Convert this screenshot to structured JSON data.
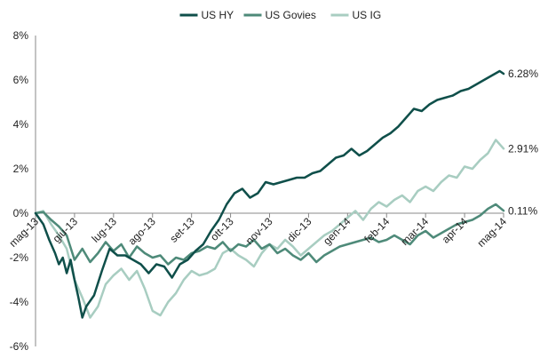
{
  "chart_data": {
    "type": "line",
    "x_ticks": [
      "mag-13",
      "giu-13",
      "lug-13",
      "ago-13",
      "set-13",
      "ott-13",
      "nov-13",
      "dic-13",
      "gen-14",
      "feb-14",
      "mar-14",
      "apr-14",
      "mag-14"
    ],
    "y_ticks": [
      "8%",
      "6%",
      "4%",
      "2%",
      "0%",
      "-2%",
      "-4%",
      "-6%"
    ],
    "ylim": [
      -6,
      8
    ],
    "y_unit": "%",
    "grid": "horizontal",
    "legend_position": "top",
    "series": [
      {
        "name": "US HY",
        "color": "#0f4f4a",
        "end_label": "6.28%",
        "x": [
          0,
          0.2,
          0.35,
          0.5,
          0.6,
          0.7,
          0.8,
          0.9,
          1.0,
          1.1,
          1.2,
          1.3,
          1.5,
          1.7,
          1.9,
          2.1,
          2.3,
          2.5,
          2.7,
          2.9,
          3.1,
          3.3,
          3.5,
          3.7,
          3.9,
          4.1,
          4.3,
          4.5,
          4.7,
          4.9,
          5.1,
          5.3,
          5.5,
          5.7,
          5.9,
          6.1,
          6.3,
          6.5,
          6.7,
          6.9,
          7.1,
          7.3,
          7.5,
          7.7,
          7.9,
          8.1,
          8.3,
          8.5,
          8.7,
          8.9,
          9.1,
          9.3,
          9.5,
          9.7,
          9.9,
          10.1,
          10.3,
          10.5,
          10.7,
          10.9,
          11.1,
          11.3,
          11.5,
          11.7,
          11.9,
          12.0
        ],
        "values": [
          0,
          -0.5,
          -1.2,
          -1.8,
          -2.3,
          -2.0,
          -2.7,
          -2.1,
          -3.0,
          -3.8,
          -4.7,
          -4.2,
          -3.7,
          -2.6,
          -1.6,
          -1.9,
          -1.9,
          -2.1,
          -2.3,
          -2.7,
          -2.3,
          -2.4,
          -2.9,
          -2.3,
          -2.1,
          -1.7,
          -1.4,
          -0.8,
          -0.3,
          0.4,
          0.9,
          1.1,
          0.7,
          0.9,
          1.4,
          1.3,
          1.4,
          1.5,
          1.6,
          1.6,
          1.8,
          1.9,
          2.2,
          2.5,
          2.6,
          2.9,
          2.6,
          2.8,
          3.1,
          3.4,
          3.6,
          3.9,
          4.3,
          4.7,
          4.6,
          4.9,
          5.1,
          5.2,
          5.3,
          5.5,
          5.6,
          5.8,
          6.0,
          6.2,
          6.4,
          6.28
        ]
      },
      {
        "name": "US Govies",
        "color": "#4e8a79",
        "end_label": "0.11%",
        "x": [
          0,
          0.2,
          0.4,
          0.6,
          0.8,
          1.0,
          1.2,
          1.4,
          1.6,
          1.8,
          2.0,
          2.2,
          2.4,
          2.6,
          2.8,
          3.0,
          3.2,
          3.4,
          3.6,
          3.8,
          4.0,
          4.2,
          4.4,
          4.6,
          4.8,
          5.0,
          5.2,
          5.4,
          5.6,
          5.8,
          6.0,
          6.2,
          6.4,
          6.6,
          6.8,
          7.0,
          7.2,
          7.4,
          7.6,
          7.8,
          8.0,
          8.2,
          8.4,
          8.6,
          8.8,
          9.0,
          9.2,
          9.4,
          9.6,
          9.8,
          10.0,
          10.2,
          10.4,
          10.6,
          10.8,
          11.0,
          11.2,
          11.4,
          11.6,
          11.8,
          12.0
        ],
        "values": [
          0,
          0.05,
          -0.3,
          -0.6,
          -1.0,
          -2.1,
          -1.6,
          -2.2,
          -1.8,
          -1.3,
          -1.7,
          -1.4,
          -2.0,
          -1.5,
          -1.8,
          -2.0,
          -1.9,
          -2.3,
          -2.0,
          -2.1,
          -1.8,
          -1.7,
          -1.5,
          -1.6,
          -1.3,
          -1.7,
          -1.4,
          -1.5,
          -1.2,
          -1.6,
          -1.4,
          -1.8,
          -1.6,
          -1.9,
          -2.1,
          -1.8,
          -2.2,
          -1.9,
          -1.7,
          -1.5,
          -1.4,
          -1.3,
          -1.2,
          -1.1,
          -1.3,
          -1.2,
          -1.0,
          -1.2,
          -1.4,
          -1.0,
          -0.8,
          -1.1,
          -0.9,
          -0.7,
          -0.5,
          -0.4,
          -0.3,
          -0.1,
          0.2,
          0.4,
          0.11
        ]
      },
      {
        "name": "US IG",
        "color": "#a8cdc1",
        "end_label": "2.91%",
        "x": [
          0,
          0.2,
          0.4,
          0.6,
          0.8,
          1.0,
          1.2,
          1.4,
          1.6,
          1.8,
          2.0,
          2.2,
          2.4,
          2.6,
          2.8,
          3.0,
          3.2,
          3.4,
          3.6,
          3.8,
          4.0,
          4.2,
          4.4,
          4.6,
          4.8,
          5.0,
          5.2,
          5.4,
          5.6,
          5.8,
          6.0,
          6.2,
          6.4,
          6.6,
          6.8,
          7.0,
          7.2,
          7.4,
          7.6,
          7.8,
          8.0,
          8.2,
          8.4,
          8.6,
          8.8,
          9.0,
          9.2,
          9.4,
          9.6,
          9.8,
          10.0,
          10.2,
          10.4,
          10.6,
          10.8,
          11.0,
          11.2,
          11.4,
          11.6,
          11.8,
          12.0
        ],
        "values": [
          0,
          0.1,
          -0.5,
          -1.0,
          -1.6,
          -3.0,
          -3.8,
          -4.7,
          -4.2,
          -3.2,
          -2.8,
          -2.5,
          -3.0,
          -2.6,
          -3.4,
          -4.4,
          -4.6,
          -4.0,
          -3.6,
          -3.0,
          -2.6,
          -2.8,
          -2.7,
          -2.5,
          -1.8,
          -1.6,
          -1.9,
          -2.1,
          -2.4,
          -1.8,
          -1.4,
          -1.6,
          -1.2,
          -1.5,
          -1.9,
          -1.6,
          -1.3,
          -1.0,
          -0.8,
          -0.5,
          -0.2,
          0.1,
          -0.3,
          0.2,
          0.5,
          0.3,
          0.6,
          0.8,
          0.5,
          1.0,
          1.2,
          1.0,
          1.4,
          1.7,
          1.6,
          2.1,
          2.0,
          2.4,
          2.7,
          3.3,
          2.91
        ]
      }
    ]
  }
}
